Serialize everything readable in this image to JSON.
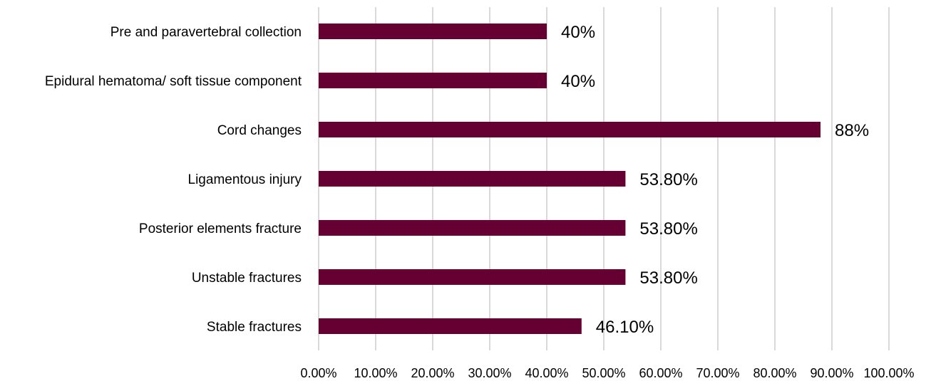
{
  "chart_data": {
    "type": "bar",
    "orientation": "horizontal",
    "categories": [
      "Pre and paravertebral collection",
      "Epidural hematoma/ soft tissue component",
      "Cord changes",
      "Ligamentous injury",
      "Posterior elements fracture",
      "Unstable fractures",
      "Stable fractures"
    ],
    "values": [
      40,
      40,
      88,
      53.8,
      53.8,
      53.8,
      46.1
    ],
    "data_labels": [
      "40%",
      "40%",
      "88%",
      "53.80%",
      "53.80%",
      "53.80%",
      "46.10%"
    ],
    "x_ticks": [
      "0.00%",
      "10.00%",
      "20.00%",
      "30.00%",
      "40.00%",
      "50.00%",
      "60.00%",
      "70.00%",
      "80.00%",
      "90.00%",
      "100.00%"
    ],
    "xlim": [
      0,
      100
    ],
    "grid": "vertical",
    "legend": "none",
    "colors": {
      "bar": "#660033",
      "grid": "#d9d9d9"
    }
  }
}
